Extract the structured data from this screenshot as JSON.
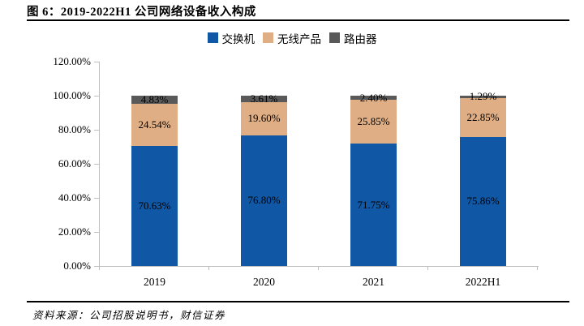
{
  "header": {
    "title": "图 6：2019-2022H1 公司网络设备收入构成"
  },
  "chart_data": {
    "type": "bar",
    "variant": "100%-stacked-column",
    "categories": [
      "2019",
      "2020",
      "2021",
      "2022H1"
    ],
    "series": [
      {
        "id": "switch",
        "name": "交换机",
        "color": "#1057A5",
        "values": [
          70.63,
          76.8,
          71.75,
          75.86
        ],
        "labels": [
          "70.63%",
          "76.80%",
          "71.75%",
          "75.86%"
        ]
      },
      {
        "id": "wireless-products",
        "name": "无线产品",
        "color": "#DFAE84",
        "values": [
          24.54,
          19.6,
          25.85,
          22.85
        ],
        "labels": [
          "24.54%",
          "19.60%",
          "25.85%",
          "22.85%"
        ]
      },
      {
        "id": "router",
        "name": "路由器",
        "color": "#595959",
        "values": [
          4.83,
          3.61,
          2.4,
          1.29
        ],
        "labels": [
          "4.83%",
          "3.61%",
          "2.40%",
          "1.29%"
        ]
      }
    ],
    "y_ticks": [
      "120.00%",
      "100.00%",
      "80.00%",
      "60.00%",
      "40.00%",
      "20.00%",
      "0.00%"
    ],
    "ylim": [
      0,
      120
    ],
    "grid": false,
    "legend_position": "top",
    "axis_color": "#bfbfbf"
  },
  "footer": {
    "source": "资料来源：公司招股说明书，财信证券"
  }
}
